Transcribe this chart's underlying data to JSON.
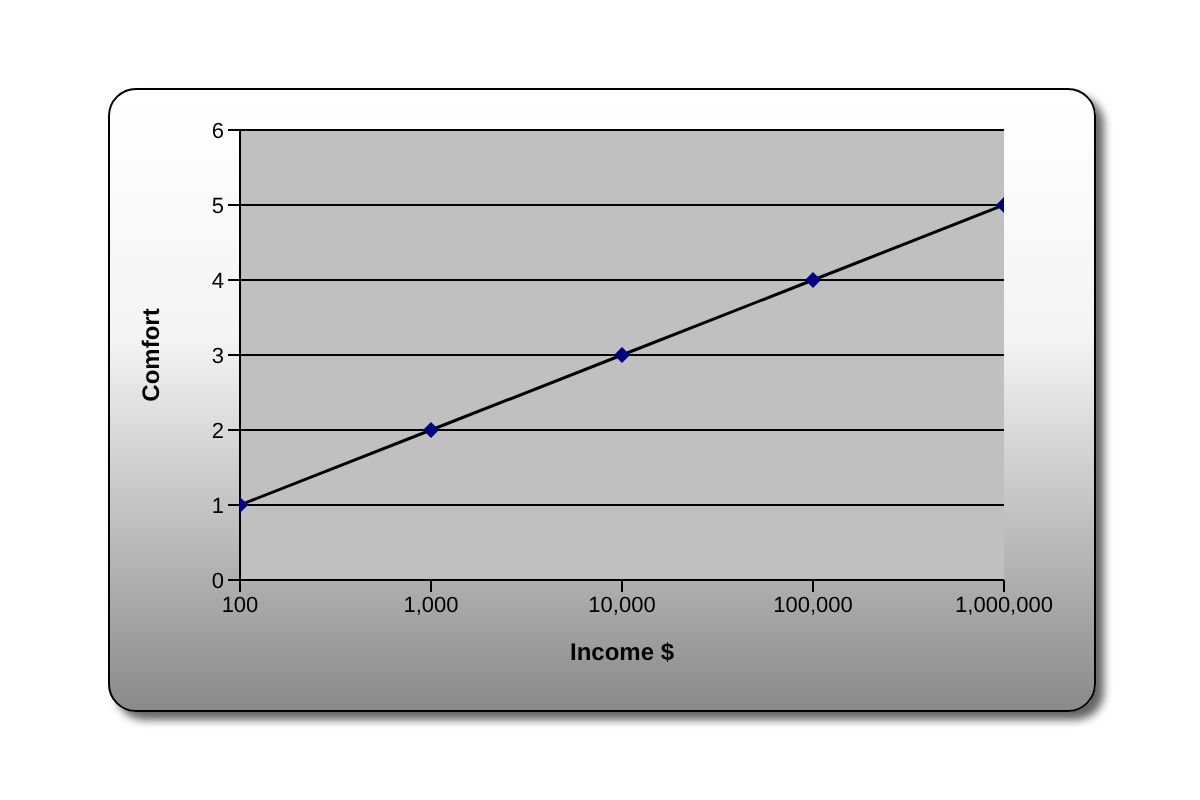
{
  "chart_data": {
    "type": "line",
    "xlabel": "Income $",
    "ylabel": "Comfort",
    "x": [
      100,
      1000,
      10000,
      100000,
      1000000
    ],
    "series": [
      {
        "color": "#000000",
        "values": [
          1,
          2,
          3,
          4,
          5
        ]
      }
    ],
    "log": "x",
    "xlim": [
      100,
      1000000
    ],
    "xticks": [
      100,
      {
        "value": 1000,
        "label": "1,000"
      },
      {
        "value": 10000,
        "label": "10,000"
      },
      {
        "value": 100000,
        "label": "100,000"
      },
      {
        "value": 1000000,
        "label": "1,000,000"
      }
    ],
    "ylim": [
      0,
      6
    ],
    "yticks": [
      0,
      1,
      2,
      3,
      4,
      5,
      6
    ],
    "grid": "y",
    "marker": "diamond",
    "line_style": "solid"
  }
}
